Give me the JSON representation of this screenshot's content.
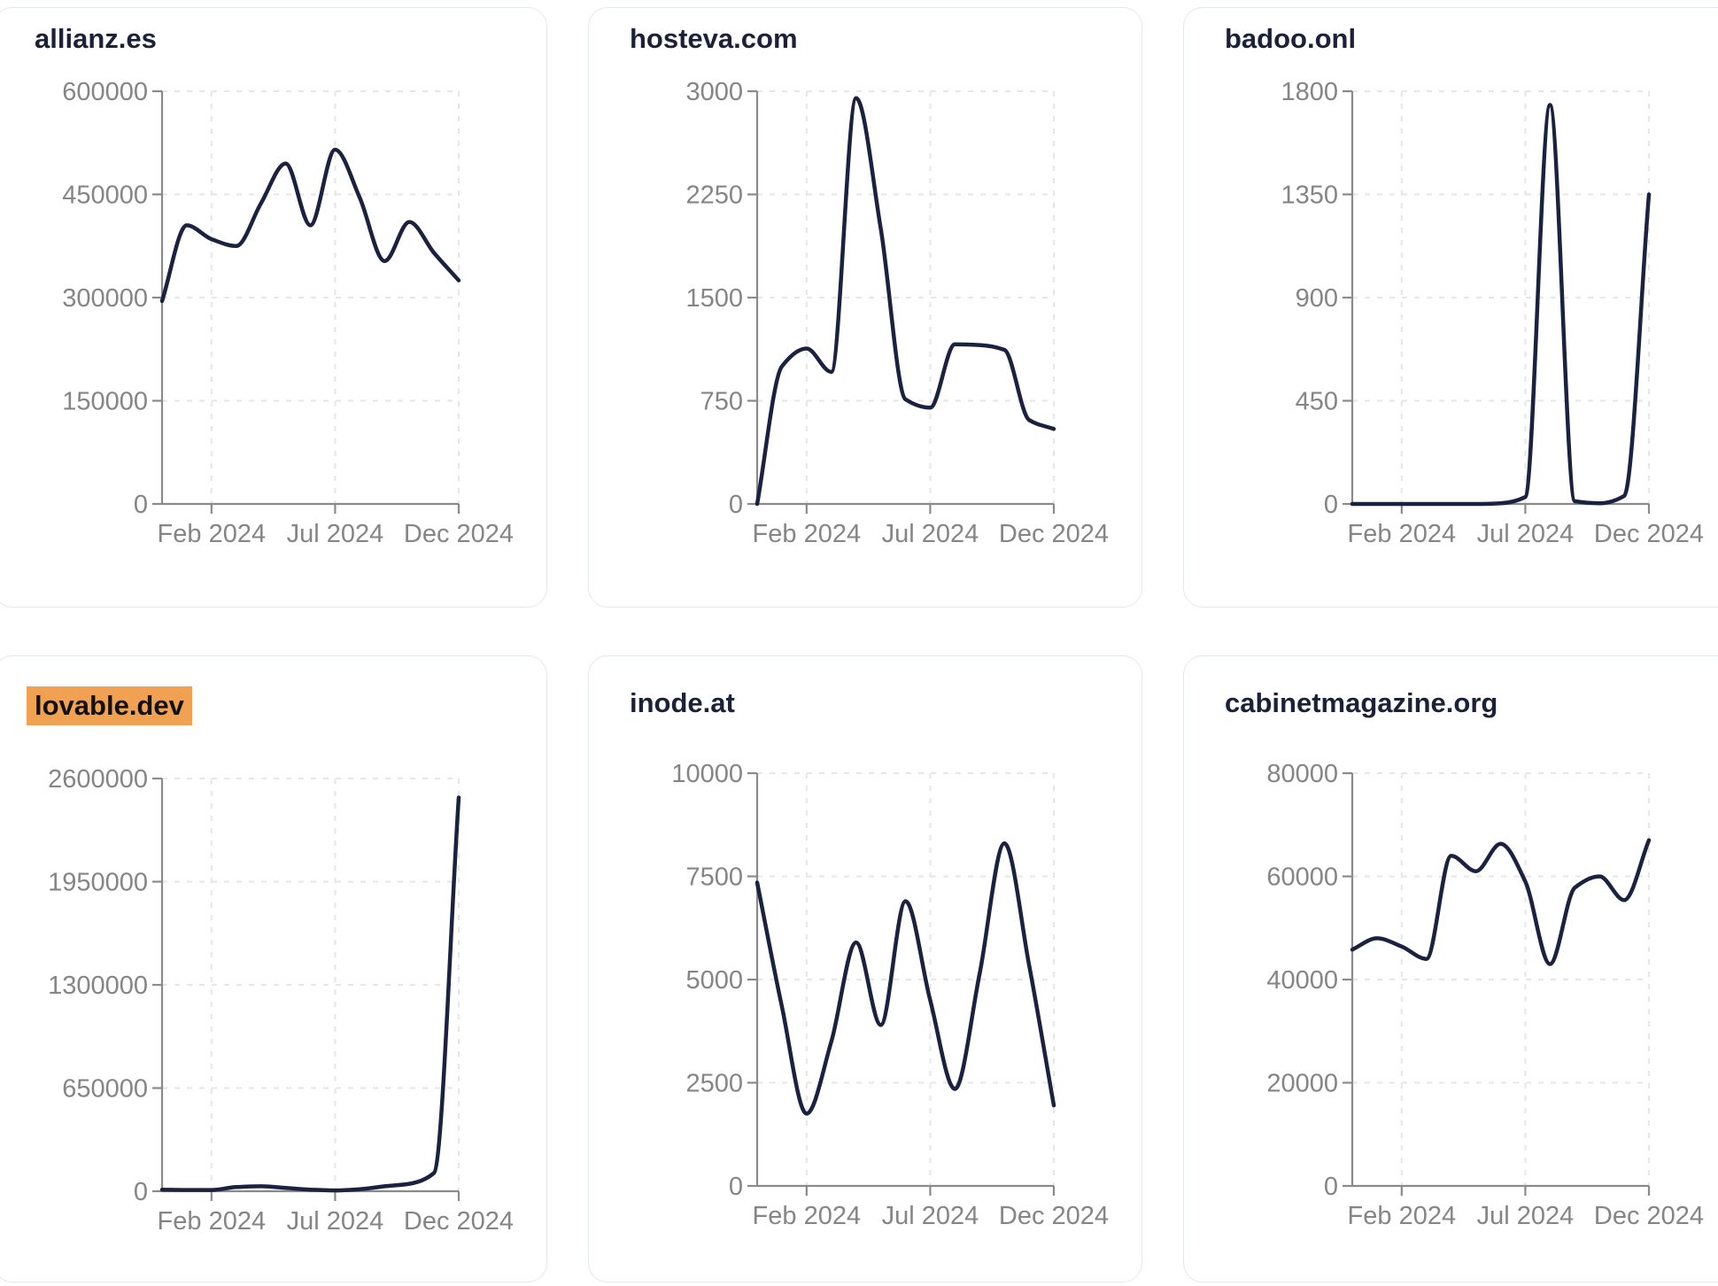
{
  "page": {
    "background": "#ffffff"
  },
  "theme": {
    "line_color": "#1b2240",
    "title_color": "#1a2138",
    "highlight_color": "#f0a152",
    "axis_color": "#8a8a8a",
    "grid_color": "#e6e6e6",
    "tick_label_color": "#858585",
    "card_border_color": "#e3e7ef"
  },
  "months": [
    "Dec 2023",
    "Jan 2024",
    "Feb 2024",
    "Mar 2024",
    "Apr 2024",
    "May 2024",
    "Jun 2024",
    "Jul 2024",
    "Aug 2024",
    "Sep 2024",
    "Oct 2024",
    "Nov 2024",
    "Dec 2024"
  ],
  "x_axis": {
    "tick_indices": [
      2,
      7,
      12
    ],
    "tick_labels": [
      "Feb 2024",
      "Jul 2024",
      "Dec 2024"
    ]
  },
  "cards": [
    {
      "title": "allianz.es",
      "highlighted": false
    },
    {
      "title": "hosteva.com",
      "highlighted": false
    },
    {
      "title": "badoo.onl",
      "highlighted": false
    },
    {
      "title": "lovable.dev",
      "highlighted": true
    },
    {
      "title": "inode.at",
      "highlighted": false
    },
    {
      "title": "cabinetmagazine.org",
      "highlighted": false
    }
  ],
  "chart_data": [
    {
      "type": "line",
      "title": "allianz.es",
      "x": [
        "Dec 2023",
        "Jan 2024",
        "Feb 2024",
        "Mar 2024",
        "Apr 2024",
        "May 2024",
        "Jun 2024",
        "Jul 2024",
        "Aug 2024",
        "Sep 2024",
        "Oct 2024",
        "Nov 2024",
        "Dec 2024"
      ],
      "values": [
        295000,
        405000,
        385000,
        375000,
        437000,
        495000,
        405000,
        515000,
        445000,
        353000,
        410000,
        365000,
        325000
      ],
      "y_ticks": [
        0,
        150000,
        300000,
        450000,
        600000
      ],
      "ylim": [
        0,
        600000
      ],
      "xlabel": "",
      "ylabel": "",
      "grid": "dashed",
      "legend": "none"
    },
    {
      "type": "line",
      "title": "hosteva.com",
      "x": [
        "Dec 2023",
        "Jan 2024",
        "Feb 2024",
        "Mar 2024",
        "Apr 2024",
        "May 2024",
        "Jun 2024",
        "Jul 2024",
        "Aug 2024",
        "Sep 2024",
        "Oct 2024",
        "Nov 2024",
        "Dec 2024"
      ],
      "values": [
        0,
        1000,
        1130,
        960,
        2950,
        2000,
        760,
        700,
        1160,
        1155,
        1120,
        610,
        545
      ],
      "y_ticks": [
        0,
        750,
        1500,
        2250,
        3000
      ],
      "ylim": [
        0,
        3000
      ],
      "xlabel": "",
      "ylabel": "",
      "grid": "dashed",
      "legend": "none"
    },
    {
      "type": "line",
      "title": "badoo.onl",
      "x": [
        "Dec 2023",
        "Jan 2024",
        "Feb 2024",
        "Mar 2024",
        "Apr 2024",
        "May 2024",
        "Jun 2024",
        "Jul 2024",
        "Aug 2024",
        "Sep 2024",
        "Oct 2024",
        "Nov 2024",
        "Dec 2024"
      ],
      "values": [
        0,
        0,
        0,
        0,
        0,
        0,
        3,
        30,
        1740,
        12,
        3,
        35,
        1350
      ],
      "y_ticks": [
        0,
        450,
        900,
        1350,
        1800
      ],
      "ylim": [
        0,
        1800
      ],
      "xlabel": "",
      "ylabel": "",
      "grid": "dashed",
      "legend": "none"
    },
    {
      "type": "line",
      "title": "lovable.dev",
      "x": [
        "Dec 2023",
        "Jan 2024",
        "Feb 2024",
        "Mar 2024",
        "Apr 2024",
        "May 2024",
        "Jun 2024",
        "Jul 2024",
        "Aug 2024",
        "Sep 2024",
        "Oct 2024",
        "Nov 2024",
        "Dec 2024"
      ],
      "values": [
        10000,
        8000,
        8000,
        26000,
        31000,
        21000,
        10000,
        5000,
        13000,
        31000,
        47000,
        115000,
        2480000
      ],
      "y_ticks": [
        0,
        650000,
        1300000,
        1950000,
        2600000
      ],
      "ylim": [
        0,
        2600000
      ],
      "xlabel": "",
      "ylabel": "",
      "grid": "dashed",
      "legend": "none"
    },
    {
      "type": "line",
      "title": "inode.at",
      "x": [
        "Dec 2023",
        "Jan 2024",
        "Feb 2024",
        "Mar 2024",
        "Apr 2024",
        "May 2024",
        "Jun 2024",
        "Jul 2024",
        "Aug 2024",
        "Sep 2024",
        "Oct 2024",
        "Nov 2024",
        "Dec 2024"
      ],
      "values": [
        7350,
        4350,
        1750,
        3500,
        5900,
        3900,
        6900,
        4500,
        2350,
        5150,
        8300,
        5350,
        1950
      ],
      "y_ticks": [
        0,
        2500,
        5000,
        7500,
        10000
      ],
      "ylim": [
        0,
        10000
      ],
      "xlabel": "",
      "ylabel": "",
      "grid": "dashed",
      "legend": "none"
    },
    {
      "type": "line",
      "title": "cabinetmagazine.org",
      "x": [
        "Dec 2023",
        "Jan 2024",
        "Feb 2024",
        "Mar 2024",
        "Apr 2024",
        "May 2024",
        "Jun 2024",
        "Jul 2024",
        "Aug 2024",
        "Sep 2024",
        "Oct 2024",
        "Nov 2024",
        "Dec 2024"
      ],
      "values": [
        45800,
        48000,
        46400,
        44000,
        64000,
        61000,
        66300,
        59000,
        43000,
        57800,
        60000,
        55400,
        67000
      ],
      "y_ticks": [
        0,
        20000,
        40000,
        60000,
        80000
      ],
      "ylim": [
        0,
        80000
      ],
      "xlabel": "",
      "ylabel": "",
      "grid": "dashed",
      "legend": "none"
    }
  ]
}
